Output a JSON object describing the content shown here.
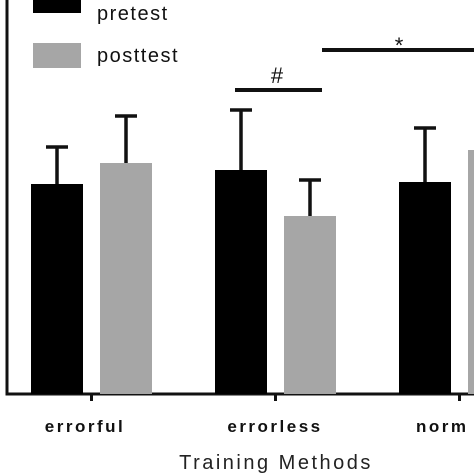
{
  "chart_data": {
    "type": "bar",
    "xlabel": "Training Methods",
    "categories": [
      "errorful",
      "errorless",
      "norm"
    ],
    "series": [
      {
        "name": "pretest",
        "color": "#000000",
        "values": [
          210,
          224,
          212
        ],
        "errors": [
          37,
          60,
          54
        ]
      },
      {
        "name": "posttest",
        "color": "#a6a6a6",
        "values": [
          231,
          178,
          244
        ],
        "errors": [
          47,
          36,
          50
        ]
      }
    ],
    "ylim": [
      0,
      420
    ],
    "significance": [
      {
        "symbol": "#",
        "between": "errorless pretest vs posttest"
      },
      {
        "symbol": "*",
        "between": "errorless posttest vs norm posttest"
      }
    ],
    "legend_position": "top-left",
    "grid": false
  }
}
